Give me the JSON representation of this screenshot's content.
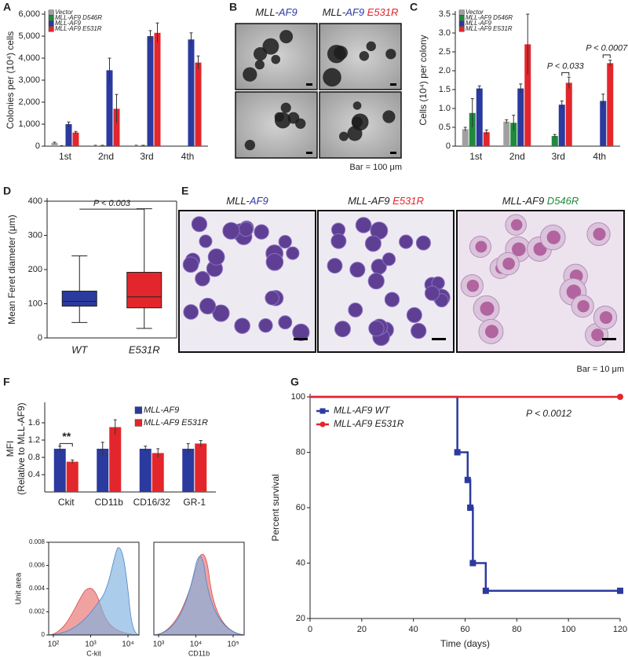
{
  "panel_labels": [
    "A",
    "B",
    "C",
    "D",
    "E",
    "F",
    "G"
  ],
  "chart_data": [
    {
      "type": "bar",
      "ylabel": "Colonies per (10⁴) cells",
      "categories": [
        "1st",
        "2nd",
        "3rd",
        "4th"
      ],
      "series": [
        {
          "name": "Vector",
          "color": "#a0a0a0",
          "values": [
            150,
            30,
            30,
            null
          ],
          "errors": [
            30,
            10,
            10,
            null
          ]
        },
        {
          "name": "MLL-AF9 D546R",
          "color": "#1f8a3c",
          "values": [
            20,
            30,
            30,
            null
          ],
          "errors": [
            5,
            10,
            10,
            null
          ]
        },
        {
          "name": "MLL-AF9",
          "color": "#2b3a9e",
          "values": [
            1000,
            3450,
            5000,
            4850
          ],
          "errors": [
            100,
            550,
            250,
            300
          ]
        },
        {
          "name": "MLL-AF9 E531R",
          "color": "#e3262b",
          "values": [
            620,
            1700,
            5150,
            3800
          ],
          "errors": [
            50,
            650,
            450,
            300
          ]
        }
      ],
      "ylim": [
        0,
        6000
      ],
      "yticks": [
        0,
        {
          "value": 1000,
          "label": "1,000"
        },
        {
          "value": 2000,
          "label": "2,000"
        },
        {
          "value": 3000,
          "label": "3,000"
        },
        {
          "value": 4000,
          "label": "4,000"
        },
        {
          "value": 5000,
          "label": "5,000"
        },
        {
          "value": 6000,
          "label": "6,000"
        }
      ]
    },
    {
      "type": "bar",
      "ylabel": "Cells (10⁴) per colony",
      "categories": [
        "1st",
        "2nd",
        "3rd",
        "4th"
      ],
      "series": [
        {
          "name": "Vector",
          "color": "#a0a0a0",
          "values": [
            0.45,
            0.65,
            null,
            null
          ],
          "errors": [
            0.05,
            0.05,
            null,
            null
          ]
        },
        {
          "name": "MLL-AF9 D546R",
          "color": "#1f8a3c",
          "values": [
            0.88,
            0.62,
            0.27,
            null
          ],
          "errors": [
            0.38,
            0.2,
            0.04,
            null
          ]
        },
        {
          "name": "MLL-AF9",
          "color": "#2b3a9e",
          "values": [
            1.53,
            1.53,
            1.1,
            1.2
          ],
          "errors": [
            0.07,
            0.12,
            0.1,
            0.18
          ]
        },
        {
          "name": "MLL-AF9 E531R",
          "color": "#e3262b",
          "values": [
            0.37,
            2.7,
            1.68,
            2.2
          ],
          "errors": [
            0.06,
            0.8,
            0.15,
            0.08
          ]
        }
      ],
      "ylim": [
        0,
        3.5
      ],
      "yticks": [
        0,
        0.5,
        {
          "value": 1,
          "label": "1.0"
        },
        1.5,
        {
          "value": 2,
          "label": "2.0"
        },
        2.5,
        {
          "value": 3,
          "label": "3.0"
        },
        3.5
      ],
      "annotations": [
        "P < 0.033",
        "P < 0.0007"
      ]
    },
    {
      "type": "box",
      "ylabel": "Mean Feret diameter (μm)",
      "categories": [
        "WT",
        "E531R"
      ],
      "colors": [
        "#2b3a9e",
        "#e3262b"
      ],
      "boxes": [
        {
          "min": 45,
          "q1": 93,
          "median": 107,
          "q3": 137,
          "max": 240
        },
        {
          "min": 28,
          "q1": 88,
          "median": 120,
          "q3": 192,
          "max": 378
        }
      ],
      "ylim": [
        0,
        400
      ],
      "yticks": [
        0,
        100,
        200,
        300,
        400
      ],
      "annotations": [
        "P < 0.003"
      ]
    },
    {
      "type": "bar",
      "ylabel": "MFI",
      "ylabel2": "(Relative to MLL-AF9)",
      "categories": [
        "Ckit",
        "CD11b",
        "CD16/32",
        "GR-1"
      ],
      "series": [
        {
          "name": "MLL-AF9",
          "color": "#2b3a9e",
          "values": [
            1.0,
            1.0,
            1.0,
            1.0
          ],
          "errors": [
            0.06,
            0.15,
            0.06,
            0.12
          ]
        },
        {
          "name": "MLL-AF9 E531R",
          "color": "#e3262b",
          "values": [
            0.7,
            1.5,
            0.9,
            1.12
          ],
          "errors": [
            0.04,
            0.17,
            0.1,
            0.07
          ]
        }
      ],
      "ylim": [
        0,
        2
      ],
      "yticks": [
        0.4,
        0.8,
        1.2,
        1.6
      ],
      "annotations": [
        "**"
      ]
    },
    {
      "type": "line",
      "ylabel": "Percent survival",
      "xlabel": "Time (days)",
      "series": [
        {
          "name": "MLL-AF9 WT",
          "color": "#2b3a9e",
          "marker": "square",
          "x": [
            0,
            57,
            61,
            62,
            63,
            68,
            120
          ],
          "values": [
            100,
            80,
            70,
            60,
            40,
            30,
            30
          ]
        },
        {
          "name": "MLL-AF9 E531R",
          "color": "#e3262b",
          "marker": "circle",
          "x": [
            0,
            120
          ],
          "values": [
            100,
            100
          ]
        }
      ],
      "xlim": [
        0,
        120
      ],
      "xticks": [
        0,
        20,
        40,
        60,
        80,
        100,
        120
      ],
      "ylim": [
        20,
        100
      ],
      "yticks": [
        20,
        40,
        60,
        80,
        100
      ],
      "annotations": [
        "P < 0.0012"
      ]
    }
  ],
  "micrographs": {
    "colonies": {
      "labels": [
        [
          "MLL-",
          "AF9"
        ],
        [
          "MLL-",
          "AF9",
          " E531R"
        ]
      ],
      "scale": "Bar = 100 μm"
    },
    "cells": {
      "labels": [
        [
          "MLL-",
          "AF9"
        ],
        [
          "MLL-AF9",
          " E531R"
        ],
        [
          "MLL-AF9",
          " D546R"
        ]
      ],
      "scale": "Bar = 10 μm"
    }
  },
  "flow": [
    {
      "ylabel": "Unit area",
      "xlabel": "C-kit",
      "xticks": [
        "10²",
        "10³",
        "10⁴"
      ],
      "yticks": [
        0,
        0.002,
        0.004,
        0.006,
        0.008
      ]
    },
    {
      "xlabel": "CD11b",
      "xticks": [
        "10³",
        "10⁴",
        "10⁵"
      ]
    }
  ]
}
